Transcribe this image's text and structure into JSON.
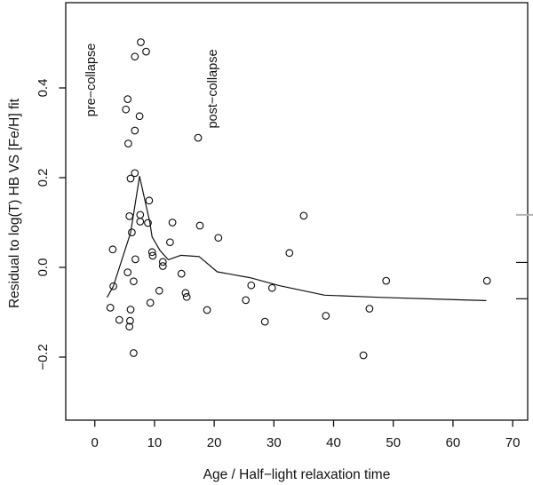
{
  "figure": {
    "background": "#ffffff",
    "ink_color": "#111111",
    "muted_tick_color": "#b4b4b4"
  },
  "chart_data": {
    "type": "scatter",
    "title": "",
    "xlabel": "Age / Half−light relaxation time",
    "ylabel": "Residual to log(T) HB VS [Fe/H] fit",
    "xlim": [
      -4.87,
      72.51
    ],
    "ylim": [
      -0.3406,
      0.5901
    ],
    "grid": false,
    "legend": "none",
    "x_ticks": [
      0,
      10,
      20,
      30,
      40,
      50,
      60,
      70
    ],
    "x_tick_labels": [
      "0",
      "10",
      "20",
      "30",
      "40",
      "50",
      "60",
      "70"
    ],
    "y_ticks": [
      -0.2,
      0.0,
      0.2,
      0.4
    ],
    "y_tick_labels": [
      "−0.2",
      "0.0",
      "0.2",
      "0.4"
    ],
    "right_axis_ticks": [
      0.117,
      0.011,
      -0.07
    ],
    "annotations": [
      {
        "id": "pre-collapse",
        "text": "pre−collapse",
        "x": -0.55,
        "y": 0.418,
        "rotation": 90
      },
      {
        "id": "post-collapse",
        "text": "post−collapse",
        "x": 19.8,
        "y": 0.398,
        "rotation": 90
      }
    ],
    "series": [
      {
        "name": "globular-clusters",
        "style": "points",
        "marker": "open-circle",
        "points": [
          [
            7.7,
            0.502
          ],
          [
            8.6,
            0.481
          ],
          [
            6.7,
            0.47
          ],
          [
            5.5,
            0.375
          ],
          [
            5.2,
            0.352
          ],
          [
            7.5,
            0.337
          ],
          [
            6.7,
            0.305
          ],
          [
            5.6,
            0.276
          ],
          [
            17.3,
            0.289
          ],
          [
            6.7,
            0.21
          ],
          [
            6.0,
            0.198
          ],
          [
            9.1,
            0.149
          ],
          [
            5.8,
            0.114
          ],
          [
            7.6,
            0.117
          ],
          [
            7.6,
            0.102
          ],
          [
            8.9,
            0.099
          ],
          [
            13.0,
            0.1
          ],
          [
            17.6,
            0.093
          ],
          [
            6.2,
            0.078
          ],
          [
            20.7,
            0.066
          ],
          [
            12.6,
            0.056
          ],
          [
            3.0,
            0.04
          ],
          [
            9.6,
            0.034
          ],
          [
            9.7,
            0.026
          ],
          [
            6.8,
            0.018
          ],
          [
            11.4,
            0.012
          ],
          [
            11.4,
            0.003
          ],
          [
            5.5,
            -0.011
          ],
          [
            14.5,
            -0.014
          ],
          [
            3.1,
            -0.042
          ],
          [
            6.5,
            -0.031
          ],
          [
            10.8,
            -0.052
          ],
          [
            15.2,
            -0.057
          ],
          [
            15.4,
            -0.066
          ],
          [
            2.6,
            -0.09
          ],
          [
            6.0,
            -0.094
          ],
          [
            9.3,
            -0.079
          ],
          [
            4.1,
            -0.117
          ],
          [
            5.9,
            -0.119
          ],
          [
            5.8,
            -0.132
          ],
          [
            6.5,
            -0.191
          ],
          [
            18.8,
            -0.095
          ],
          [
            25.3,
            -0.073
          ],
          [
            26.2,
            -0.04
          ],
          [
            29.7,
            -0.046
          ],
          [
            28.5,
            -0.121
          ],
          [
            32.6,
            0.032
          ],
          [
            35.0,
            0.115
          ],
          [
            38.7,
            -0.108
          ],
          [
            46.0,
            -0.092
          ],
          [
            45.0,
            -0.196
          ],
          [
            48.8,
            -0.03
          ],
          [
            65.7,
            -0.03
          ]
        ]
      },
      {
        "name": "lowess-smooth",
        "style": "line",
        "points": [
          [
            2.1,
            -0.066
          ],
          [
            3.1,
            -0.042
          ],
          [
            6.0,
            0.077
          ],
          [
            7.5,
            0.203
          ],
          [
            9.2,
            0.101
          ],
          [
            9.6,
            0.068
          ],
          [
            10.9,
            0.038
          ],
          [
            12.3,
            0.017
          ],
          [
            14.4,
            0.027
          ],
          [
            17.5,
            0.024
          ],
          [
            20.5,
            -0.01
          ],
          [
            26.0,
            -0.023
          ],
          [
            31.0,
            -0.041
          ],
          [
            38.5,
            -0.062
          ],
          [
            48.0,
            -0.067
          ],
          [
            58.0,
            -0.071
          ],
          [
            65.5,
            -0.074
          ]
        ]
      }
    ]
  }
}
